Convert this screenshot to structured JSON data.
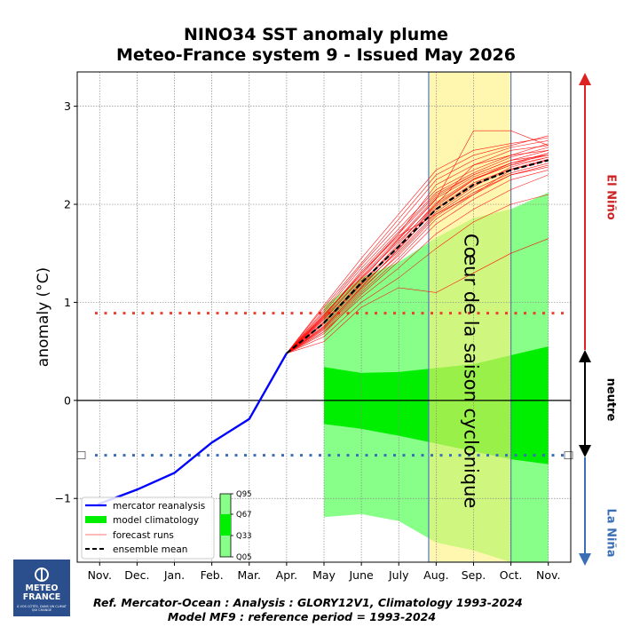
{
  "title_line1": "NINO34 SST anomaly plume",
  "title_line2": "Meteo-France system 9 - Issued May 2026",
  "footer_line1": "Ref. Mercator-Ocean :  Analysis : GLORY12V1, Climatology 1993-2024",
  "footer_line2": "Model MF9 : reference period = 1993-2024",
  "logo": {
    "line1": "METEO",
    "line2": "FRANCE",
    "tagline": "À VOS CÔTÉS, DANS UN CLIMAT QUI CHANGE"
  },
  "chart_data": {
    "type": "line",
    "ylabel": "anomaly (°C)",
    "xlabel": "",
    "ylim": [
      -1.65,
      3.35
    ],
    "yticks": [
      -1,
      0,
      1,
      2,
      3
    ],
    "grid": true,
    "categories": [
      "Nov.",
      "Dec.",
      "Jan.",
      "Feb.",
      "Mar.",
      "Apr.",
      "May",
      "June",
      "July",
      "Aug.",
      "Sep.",
      "Oct.",
      "Nov."
    ],
    "xlim": [
      -0.6,
      12.6
    ],
    "thresholds": [
      {
        "name": "El Niño threshold",
        "value": 0.89,
        "color": "#e8412f"
      },
      {
        "name": "La Niña threshold",
        "value": -0.56,
        "color": "#3a6fb5"
      }
    ],
    "reanalysis": {
      "name": "mercator reanalysis",
      "color": "#0000ff",
      "x": [
        -0.05,
        1,
        2,
        3,
        4,
        5
      ],
      "y": [
        -1.06,
        -0.91,
        -0.74,
        -0.43,
        -0.19,
        0.48
      ]
    },
    "climatology": {
      "name": "model climatology",
      "x": [
        6,
        7,
        8,
        9,
        10,
        11,
        12
      ],
      "q05": [
        -1.19,
        -1.16,
        -1.23,
        -1.45,
        -1.53,
        -1.65,
        -1.65
      ],
      "q33": [
        -0.24,
        -0.29,
        -0.36,
        -0.44,
        -0.52,
        -0.6,
        -0.65
      ],
      "q67": [
        0.34,
        0.28,
        0.29,
        0.33,
        0.37,
        0.46,
        0.55
      ],
      "q95": [
        0.96,
        1.25,
        1.41,
        1.66,
        1.86,
        1.95,
        2.12
      ],
      "labels": [
        "Q95",
        "Q67",
        "Q33",
        "Q05"
      ]
    },
    "forecast_runs": {
      "name": "forecast runs",
      "color": "#ff0000",
      "x": [
        5,
        6,
        7,
        8,
        9,
        10,
        11,
        12
      ],
      "members": [
        [
          0.48,
          0.82,
          1.25,
          1.62,
          2.0,
          2.25,
          2.4,
          2.52
        ],
        [
          0.48,
          0.75,
          1.15,
          1.55,
          1.95,
          2.2,
          2.35,
          2.45
        ],
        [
          0.48,
          0.9,
          1.35,
          1.75,
          2.15,
          2.35,
          2.5,
          2.62
        ],
        [
          0.48,
          0.7,
          1.1,
          1.45,
          1.85,
          2.1,
          2.3,
          2.4
        ],
        [
          0.48,
          0.85,
          1.3,
          1.7,
          2.1,
          2.3,
          2.45,
          2.55
        ],
        [
          0.48,
          0.78,
          1.2,
          1.58,
          1.98,
          2.25,
          2.42,
          2.5
        ],
        [
          0.48,
          0.95,
          1.4,
          1.85,
          2.3,
          2.5,
          2.6,
          2.7
        ],
        [
          0.48,
          0.65,
          1.0,
          1.25,
          1.55,
          1.82,
          2.0,
          2.1
        ],
        [
          0.48,
          0.6,
          0.95,
          1.15,
          1.1,
          1.3,
          1.5,
          1.65
        ],
        [
          0.48,
          0.8,
          1.22,
          1.65,
          2.05,
          2.75,
          2.75,
          2.6
        ],
        [
          0.48,
          0.88,
          1.28,
          1.7,
          2.2,
          2.4,
          2.55,
          2.6
        ],
        [
          0.48,
          0.72,
          1.12,
          1.5,
          1.9,
          2.15,
          2.32,
          2.42
        ],
        [
          0.48,
          0.84,
          1.26,
          1.66,
          2.08,
          2.3,
          2.45,
          2.5
        ],
        [
          0.48,
          0.76,
          1.18,
          1.52,
          1.92,
          2.18,
          2.38,
          2.48
        ],
        [
          0.48,
          0.92,
          1.38,
          1.8,
          2.25,
          2.45,
          2.58,
          2.65
        ],
        [
          0.48,
          0.68,
          1.08,
          1.42,
          1.8,
          2.05,
          2.25,
          2.35
        ],
        [
          0.48,
          0.86,
          1.32,
          1.72,
          2.12,
          2.32,
          2.48,
          2.58
        ],
        [
          0.48,
          0.74,
          1.16,
          1.54,
          1.96,
          2.22,
          2.36,
          2.46
        ],
        [
          0.48,
          0.8,
          1.2,
          1.6,
          2.02,
          2.26,
          2.4,
          2.48
        ],
        [
          0.48,
          0.83,
          1.24,
          1.64,
          2.06,
          2.28,
          2.42,
          2.52
        ],
        [
          0.48,
          0.7,
          1.05,
          1.35,
          1.7,
          1.95,
          2.15,
          2.3
        ],
        [
          0.48,
          0.97,
          1.45,
          1.9,
          2.35,
          2.55,
          2.62,
          2.68
        ],
        [
          0.48,
          0.79,
          1.19,
          1.57,
          2.0,
          2.4,
          2.5,
          2.55
        ],
        [
          0.48,
          0.87,
          1.3,
          1.68,
          1.9,
          2.1,
          2.35,
          2.45
        ],
        [
          0.48,
          0.73,
          1.14,
          1.48,
          1.88,
          2.12,
          2.3,
          2.38
        ]
      ]
    },
    "ensemble_mean": {
      "name": "ensemble mean",
      "color": "#000000",
      "x": [
        5,
        6,
        7,
        8,
        9,
        10,
        11,
        12
      ],
      "y": [
        0.48,
        0.79,
        1.2,
        1.57,
        1.95,
        2.2,
        2.35,
        2.45
      ]
    },
    "highlight": {
      "x_from": 8.8,
      "x_to": 11.0,
      "label": "Cœur de la saison cyclonique",
      "color": "#fff27a"
    },
    "legend": {
      "placement": "lower-left",
      "entries": [
        "mercator reanalysis",
        "model climatology",
        "forecast runs",
        "ensemble mean"
      ]
    },
    "side_labels": {
      "el_nino": "El Niño",
      "neutre": "neutre",
      "la_nina": "La Niña"
    }
  }
}
